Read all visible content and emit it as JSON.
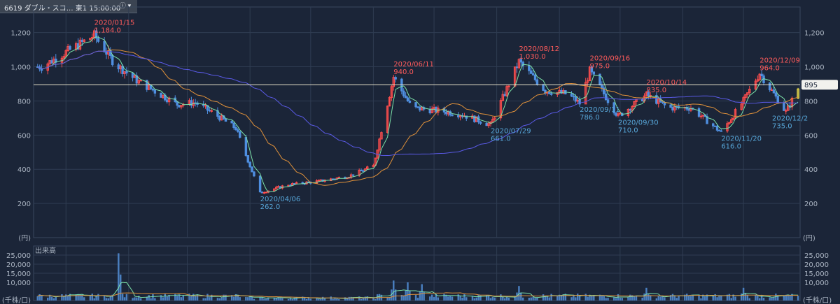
{
  "header": {
    "title": "6619 ダブル・スコ…  東1  15:00:00",
    "info_icon": "info-dropdown-icon"
  },
  "chart_data": [
    {
      "type": "candlestick",
      "panel": "price",
      "unit_label": "(円)",
      "ylim": [
        0,
        1350
      ],
      "yticks": [
        200,
        400,
        600,
        800,
        1000,
        1200
      ],
      "ytick_labels": [
        "200",
        "400",
        "600",
        "800",
        "1,000",
        "1,200"
      ],
      "grid": true,
      "current_price": {
        "value": 895,
        "label": "895"
      },
      "colors": {
        "up": "#ff4d4d",
        "down": "#4f8fe0",
        "ma_short": "#7be0a8",
        "ma_mid": "#e0913a",
        "ma_long": "#5a5ae6",
        "last_candle": "#f2e34a"
      },
      "x_start": "2019-12-16",
      "x_end": "2020-12-29",
      "series": [
        {
          "name": "price",
          "points": [
            [
              "2019-12-20",
              1000
            ],
            [
              "2020-01-15",
              1184
            ],
            [
              "2020-01-25",
              1020
            ],
            [
              "2020-02-05",
              920
            ],
            [
              "2020-02-15",
              850
            ],
            [
              "2020-02-25",
              780
            ],
            [
              "2020-03-05",
              790
            ],
            [
              "2020-03-15",
              720
            ],
            [
              "2020-03-25",
              640
            ],
            [
              "2020-04-06",
              262
            ],
            [
              "2020-04-20",
              310
            ],
            [
              "2020-05-05",
              330
            ],
            [
              "2020-05-20",
              360
            ],
            [
              "2020-06-01",
              420
            ],
            [
              "2020-06-11",
              940
            ],
            [
              "2020-06-20",
              760
            ],
            [
              "2020-07-05",
              740
            ],
            [
              "2020-07-15",
              720
            ],
            [
              "2020-07-29",
              661
            ],
            [
              "2020-08-12",
              1030
            ],
            [
              "2020-08-25",
              860
            ],
            [
              "2020-09-05",
              840
            ],
            [
              "2020-09-11",
              786
            ],
            [
              "2020-09-16",
              975
            ],
            [
              "2020-09-30",
              710
            ],
            [
              "2020-10-14",
              835
            ],
            [
              "2020-10-25",
              760
            ],
            [
              "2020-11-05",
              760
            ],
            [
              "2020-11-20",
              616
            ],
            [
              "2020-12-01",
              800
            ],
            [
              "2020-12-09",
              964
            ],
            [
              "2020-12-22",
              735
            ],
            [
              "2020-12-29",
              895
            ]
          ]
        }
      ],
      "annotations": [
        {
          "date": "2020/01/15",
          "value": "1,184.0",
          "kind": "high"
        },
        {
          "date": "2020/04/06",
          "value": "262.0",
          "kind": "low"
        },
        {
          "date": "2020/06/11",
          "value": "940.0",
          "kind": "high"
        },
        {
          "date": "2020/07/29",
          "value": "661.0",
          "kind": "low"
        },
        {
          "date": "2020/08/12",
          "value": "1,030.0",
          "kind": "high"
        },
        {
          "date": "2020/09/11",
          "value": "786.0",
          "kind": "low"
        },
        {
          "date": "2020/09/16",
          "value": "975.0",
          "kind": "high"
        },
        {
          "date": "2020/09/30",
          "value": "710.0",
          "kind": "low"
        },
        {
          "date": "2020/10/14",
          "value": "835.0",
          "kind": "high"
        },
        {
          "date": "2020/11/20",
          "value": "616.0",
          "kind": "low"
        },
        {
          "date": "2020/12/09",
          "value": "964.0",
          "kind": "high"
        },
        {
          "date": "2020/12/2",
          "value": "735.0",
          "kind": "low"
        }
      ]
    },
    {
      "type": "bar",
      "panel": "volume",
      "title": "出来高",
      "unit_label": "(千株/口)",
      "ylim": [
        0,
        30000
      ],
      "yticks": [
        10000,
        15000,
        20000,
        25000
      ],
      "ytick_labels": [
        "10,000",
        "15,000",
        "20,000",
        "25,000"
      ],
      "grid": true,
      "color": "#4a7fc0",
      "peaks": [
        [
          "2020-01-27",
          26000
        ],
        [
          "2020-06-11",
          11000
        ],
        [
          "2020-06-18",
          10000
        ],
        [
          "2020-06-25",
          9000
        ],
        [
          "2020-08-12",
          8000
        ],
        [
          "2020-10-14",
          7000
        ],
        [
          "2020-12-01",
          7000
        ]
      ]
    }
  ]
}
